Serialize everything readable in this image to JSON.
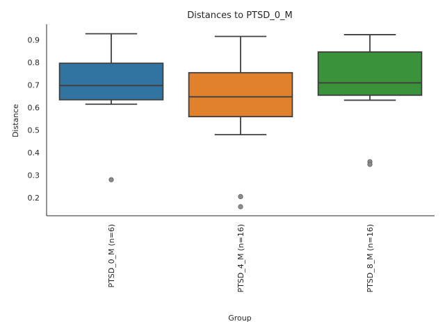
{
  "chart_data": {
    "type": "box",
    "title": "Distances to PTSD_0_M",
    "xlabel": "Group",
    "ylabel": "Distance",
    "ylim": [
      0.12,
      0.97
    ],
    "yticks": [
      0.2,
      0.3,
      0.4,
      0.5,
      0.6,
      0.7,
      0.8,
      0.9
    ],
    "yticklabels": [
      "0.2",
      "0.3",
      "0.4",
      "0.5",
      "0.6",
      "0.7",
      "0.8",
      "0.9"
    ],
    "grid": false,
    "groups": [
      {
        "label": "PTSD_0_M (n=6)",
        "color": "#3274a1",
        "whisker_low": 0.615,
        "q1": 0.635,
        "median": 0.698,
        "q3": 0.797,
        "whisker_high": 0.928,
        "outliers": [
          0.28
        ]
      },
      {
        "label": "PTSD_4_M (n=16)",
        "color": "#e1812c",
        "whisker_low": 0.48,
        "q1": 0.56,
        "median": 0.648,
        "q3": 0.755,
        "whisker_high": 0.916,
        "outliers": [
          0.205,
          0.16
        ]
      },
      {
        "label": "PTSD_8_M (n=16)",
        "color": "#3a923a",
        "whisker_low": 0.633,
        "q1": 0.655,
        "median": 0.71,
        "q3": 0.847,
        "whisker_high": 0.924,
        "outliers": [
          0.36,
          0.348
        ]
      }
    ]
  }
}
